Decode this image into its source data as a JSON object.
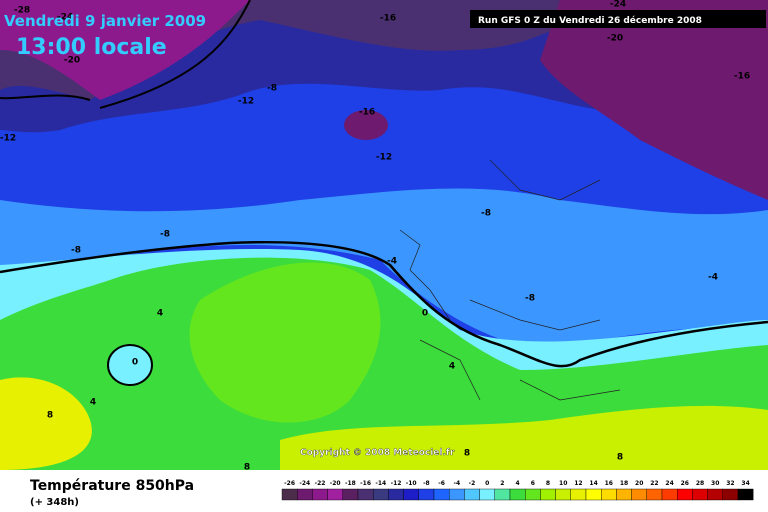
{
  "header": {
    "date": "Vendredi 9 janvier 2009",
    "time": "13:00 locale",
    "run": "Run GFS 0 Z du Vendredi 26 décembre 2008"
  },
  "copyright": "Copyright © 2008 Meteociel.fr",
  "footer": {
    "title": "Température 850hPa",
    "lead": "(+ 348h)"
  },
  "scale": {
    "values": [
      -26,
      -24,
      -22,
      -20,
      -18,
      -16,
      -14,
      -12,
      -10,
      -8,
      -6,
      -4,
      -2,
      0,
      2,
      4,
      6,
      8,
      10,
      12,
      14,
      16,
      18,
      20,
      22,
      24,
      26,
      28,
      30,
      32,
      34
    ],
    "colors": [
      "#4b2d4b",
      "#6e1a6e",
      "#8c1a8c",
      "#a020a0",
      "#5a2060",
      "#4a3070",
      "#3a3a80",
      "#2a2aa0",
      "#1e1ec8",
      "#1e40e6",
      "#1e64ff",
      "#3c96ff",
      "#50c8ff",
      "#78f0ff",
      "#50e6a0",
      "#3cdc3c",
      "#64e61e",
      "#a0f000",
      "#c8f000",
      "#e6f000",
      "#ffff00",
      "#ffdc00",
      "#ffb400",
      "#ff8c00",
      "#ff6400",
      "#ff3c00",
      "#ff0000",
      "#dc0000",
      "#b40000",
      "#8c0000",
      "#000000"
    ]
  },
  "contour_labels": [
    "-28",
    "-24",
    "-16",
    "-24",
    "-20",
    "-16",
    "-20",
    "-12",
    "-8",
    "-16",
    "-12",
    "-12",
    "-8",
    "-8",
    "-8",
    "-4",
    "-4",
    "-8",
    "4",
    "0",
    "0",
    "4",
    "4",
    "8",
    "8",
    "8",
    "8"
  ]
}
